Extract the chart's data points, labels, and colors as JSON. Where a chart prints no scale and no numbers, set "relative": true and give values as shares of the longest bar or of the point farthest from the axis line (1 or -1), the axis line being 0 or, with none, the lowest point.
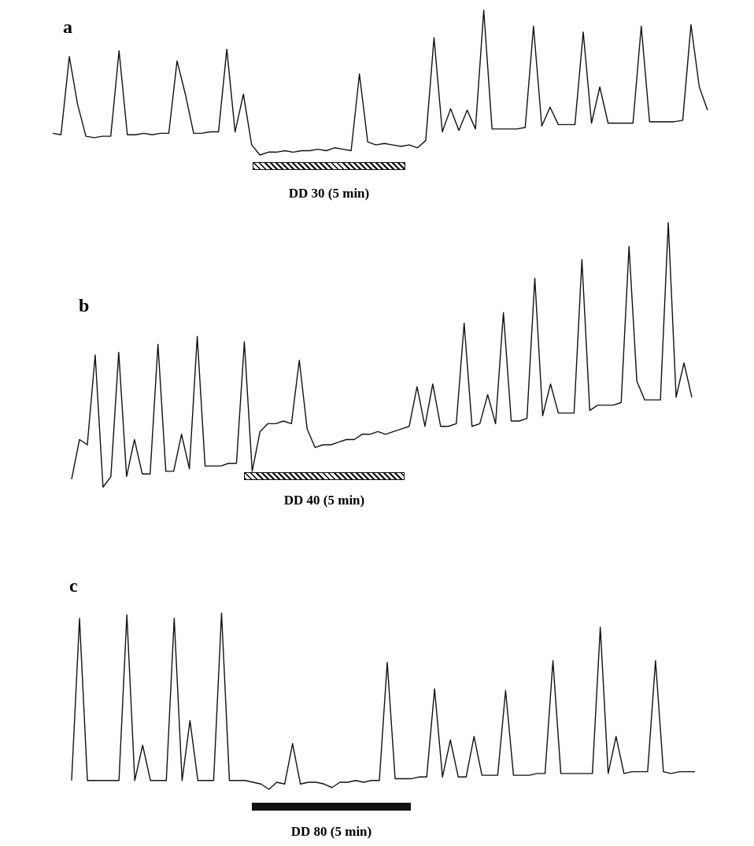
{
  "chart_data": [
    {
      "type": "line",
      "title": "a",
      "relative": true,
      "annotations": [
        "DD 30 (5 min)"
      ],
      "categories": [
        null,
        null,
        null,
        null,
        null,
        null,
        null,
        null,
        null,
        null,
        null,
        null,
        null,
        null,
        null,
        null,
        null,
        null,
        null,
        null,
        null,
        null,
        null,
        null,
        null,
        null,
        null,
        null,
        null,
        null,
        null,
        null,
        null,
        null,
        null,
        null,
        null,
        null,
        null,
        null,
        null,
        null,
        null,
        null,
        null,
        null,
        null,
        null,
        null,
        null,
        null,
        null,
        null,
        null,
        null,
        null,
        null,
        null,
        null,
        null,
        null,
        null,
        null,
        null,
        null,
        null,
        null,
        null,
        null,
        null,
        null,
        null,
        null,
        null,
        null,
        null,
        null,
        null,
        null,
        null
      ],
      "series": [
        {
          "color": "#111111",
          "values": [
            0.15,
            0.14,
            0.68,
            0.35,
            0.13,
            0.12,
            0.13,
            0.13,
            0.72,
            0.14,
            0.14,
            0.15,
            0.14,
            0.15,
            0.15,
            0.65,
            0.42,
            0.15,
            0.15,
            0.16,
            0.16,
            0.73,
            0.16,
            0.42,
            0.07,
            0,
            0.02,
            0.02,
            0.03,
            0.02,
            0.03,
            0.03,
            0.04,
            0.03,
            0.05,
            0.04,
            0.03,
            0.56,
            0.09,
            0.07,
            0.08,
            0.07,
            0.06,
            0.07,
            0.05,
            0.1,
            0.81,
            0.16,
            0.32,
            0.17,
            0.31,
            0.18,
            1,
            0.18,
            0.18,
            0.18,
            0.18,
            0.19,
            0.89,
            0.2,
            0.33,
            0.21,
            0.21,
            0.21,
            0.85,
            0.22,
            0.47,
            0.22,
            0.22,
            0.22,
            0.22,
            0.89,
            0.23,
            0.23,
            0.23,
            0.23,
            0.24,
            0.9,
            0.47,
            0.31
          ]
        }
      ]
    },
    {
      "type": "line",
      "title": "b",
      "relative": true,
      "annotations": [
        "DD 40 (5 min)"
      ],
      "categories": [
        null,
        null,
        null,
        null,
        null,
        null,
        null,
        null,
        null,
        null,
        null,
        null,
        null,
        null,
        null,
        null,
        null,
        null,
        null,
        null,
        null,
        null,
        null,
        null,
        null,
        null,
        null,
        null,
        null,
        null,
        null,
        null,
        null,
        null,
        null,
        null,
        null,
        null,
        null,
        null,
        null,
        null,
        null,
        null,
        null,
        null,
        null,
        null,
        null,
        null,
        null,
        null,
        null,
        null,
        null,
        null,
        null,
        null,
        null,
        null,
        null,
        null,
        null,
        null,
        null,
        null,
        null,
        null,
        null,
        null,
        null,
        null,
        null,
        null,
        null,
        null,
        null,
        null,
        null,
        null
      ],
      "series": [
        {
          "color": "#111111",
          "values": [
            0.03,
            0.18,
            0.16,
            0.5,
            0,
            0.04,
            0.51,
            0.04,
            0.18,
            0.05,
            0.05,
            0.54,
            0.06,
            0.06,
            0.2,
            0.07,
            0.57,
            0.08,
            0.08,
            0.08,
            0.09,
            0.09,
            0.55,
            0.06,
            0.21,
            0.24,
            0.24,
            0.25,
            0.24,
            0.48,
            0.22,
            0.15,
            0.16,
            0.16,
            0.17,
            0.18,
            0.18,
            0.2,
            0.2,
            0.21,
            0.2,
            0.21,
            0.22,
            0.23,
            0.38,
            0.23,
            0.39,
            0.23,
            0.23,
            0.24,
            0.62,
            0.23,
            0.24,
            0.35,
            0.24,
            0.66,
            0.25,
            0.25,
            0.26,
            0.79,
            0.27,
            0.39,
            0.28,
            0.28,
            0.28,
            0.86,
            0.29,
            0.31,
            0.31,
            0.31,
            0.32,
            0.91,
            0.4,
            0.33,
            0.33,
            0.33,
            1,
            0.34,
            0.47,
            0.34
          ]
        }
      ]
    },
    {
      "type": "line",
      "title": "c",
      "relative": true,
      "annotations": [
        "DD 80 (5 min)"
      ],
      "categories": [
        null,
        null,
        null,
        null,
        null,
        null,
        null,
        null,
        null,
        null,
        null,
        null,
        null,
        null,
        null,
        null,
        null,
        null,
        null,
        null,
        null,
        null,
        null,
        null,
        null,
        null,
        null,
        null,
        null,
        null,
        null,
        null,
        null,
        null,
        null,
        null,
        null,
        null,
        null,
        null,
        null,
        null,
        null,
        null,
        null,
        null,
        null,
        null,
        null,
        null,
        null,
        null,
        null,
        null,
        null,
        null,
        null,
        null,
        null,
        null,
        null,
        null,
        null,
        null,
        null,
        null,
        null,
        null,
        null,
        null,
        null,
        null,
        null,
        null,
        null,
        null,
        null,
        null,
        null,
        null
      ],
      "series": [
        {
          "color": "#111111",
          "values": [
            0.05,
            0.97,
            0.05,
            0.05,
            0.05,
            0.05,
            0.05,
            0.99,
            0.05,
            0.25,
            0.05,
            0.05,
            0.05,
            0.97,
            0.05,
            0.39,
            0.05,
            0.05,
            0.05,
            1,
            0.05,
            0.05,
            0.05,
            0.04,
            0.03,
            0,
            0.04,
            0.03,
            0.26,
            0.03,
            0.04,
            0.04,
            0.03,
            0.01,
            0.04,
            0.04,
            0.05,
            0.04,
            0.05,
            0.05,
            0.72,
            0.06,
            0.06,
            0.06,
            0.07,
            0.07,
            0.57,
            0.07,
            0.28,
            0.07,
            0.07,
            0.3,
            0.08,
            0.08,
            0.08,
            0.56,
            0.08,
            0.08,
            0.08,
            0.09,
            0.09,
            0.73,
            0.09,
            0.09,
            0.09,
            0.09,
            0.09,
            0.92,
            0.09,
            0.3,
            0.09,
            0.1,
            0.1,
            0.1,
            0.73,
            0.1,
            0.09,
            0.1,
            0.1,
            0.1
          ]
        }
      ]
    }
  ]
}
